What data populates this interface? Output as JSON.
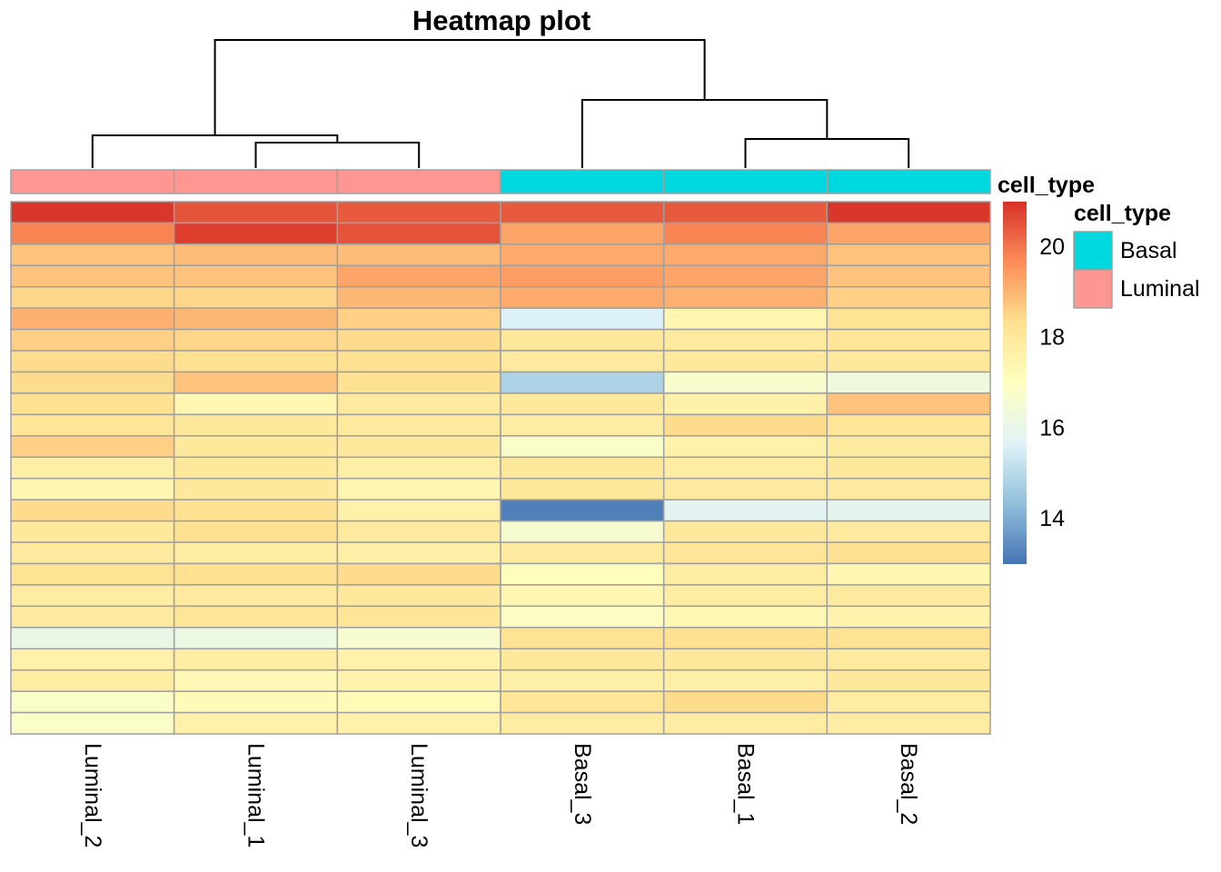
{
  "chart_data": {
    "type": "heatmap",
    "title": "Heatmap plot",
    "columns": [
      "Luminal_2",
      "Luminal_1",
      "Luminal_3",
      "Basal_3",
      "Basal_1",
      "Basal_2"
    ],
    "column_annotation": {
      "name": "cell_type",
      "values": [
        "Luminal",
        "Luminal",
        "Luminal",
        "Basal",
        "Basal",
        "Basal"
      ],
      "levels": [
        "Basal",
        "Luminal"
      ],
      "colors": {
        "Basal": "#00D8E0",
        "Luminal": "#FF9691"
      }
    },
    "matrix": [
      [
        20.9,
        20.5,
        20.4,
        20.4,
        20.4,
        20.9
      ],
      [
        19.8,
        20.8,
        20.5,
        19.3,
        19.8,
        19.3
      ],
      [
        18.8,
        18.9,
        18.9,
        19.2,
        19.2,
        18.8
      ],
      [
        18.8,
        18.8,
        19.3,
        19.4,
        19.3,
        18.8
      ],
      [
        18.5,
        18.5,
        19.0,
        19.2,
        19.1,
        18.6
      ],
      [
        19.1,
        19.0,
        18.6,
        15.6,
        17.4,
        18.2
      ],
      [
        18.6,
        18.5,
        18.4,
        18.0,
        17.9,
        18.1
      ],
      [
        18.4,
        18.3,
        18.3,
        17.9,
        18.0,
        18.0
      ],
      [
        18.4,
        18.8,
        18.3,
        14.8,
        16.7,
        16.3
      ],
      [
        18.3,
        17.4,
        17.9,
        18.0,
        17.6,
        18.8
      ],
      [
        18.1,
        18.0,
        17.9,
        17.8,
        18.4,
        18.1
      ],
      [
        18.6,
        18.0,
        18.0,
        16.8,
        17.6,
        17.9
      ],
      [
        17.7,
        18.0,
        17.7,
        18.0,
        17.8,
        18.0
      ],
      [
        17.4,
        18.0,
        17.4,
        18.0,
        17.9,
        17.9
      ],
      [
        18.4,
        18.3,
        17.6,
        13.2,
        15.8,
        15.9
      ],
      [
        18.0,
        18.3,
        17.9,
        16.6,
        18.0,
        17.9
      ],
      [
        17.9,
        17.8,
        17.7,
        17.9,
        18.1,
        18.3
      ],
      [
        18.2,
        18.3,
        18.4,
        17.1,
        17.8,
        17.4
      ],
      [
        17.8,
        17.9,
        18.0,
        17.4,
        17.8,
        17.9
      ],
      [
        17.9,
        18.1,
        18.1,
        16.9,
        17.3,
        17.5
      ],
      [
        16.1,
        16.2,
        16.6,
        18.2,
        18.3,
        18.2
      ],
      [
        17.6,
        17.8,
        17.6,
        18.0,
        18.0,
        17.9
      ],
      [
        17.8,
        17.3,
        17.5,
        17.7,
        17.7,
        18.0
      ],
      [
        16.8,
        17.2,
        17.2,
        18.1,
        18.4,
        17.8
      ],
      [
        16.8,
        17.6,
        17.6,
        17.8,
        17.8,
        17.8
      ]
    ],
    "color_scale": {
      "min": 13.0,
      "max": 21.0,
      "ticks": [
        14,
        16,
        18,
        20
      ],
      "tick_labels": [
        "14",
        "16",
        "18",
        "20"
      ],
      "colors": [
        "#4575B4",
        "#91BFDB",
        "#E0F3F8",
        "#FFFFBF",
        "#FEE090",
        "#FC8D59",
        "#D73027"
      ]
    },
    "legend": {
      "title": "cell_type",
      "placement": "right"
    },
    "cell_border_color": "#A0A0A0",
    "dendrogram": {
      "columns": "clustered",
      "merges": [
        [
          1,
          2
        ],
        [
          4,
          5
        ],
        [
          0,
          "12"
        ],
        [
          3,
          "45"
        ],
        [
          "012",
          "345"
        ]
      ]
    }
  }
}
